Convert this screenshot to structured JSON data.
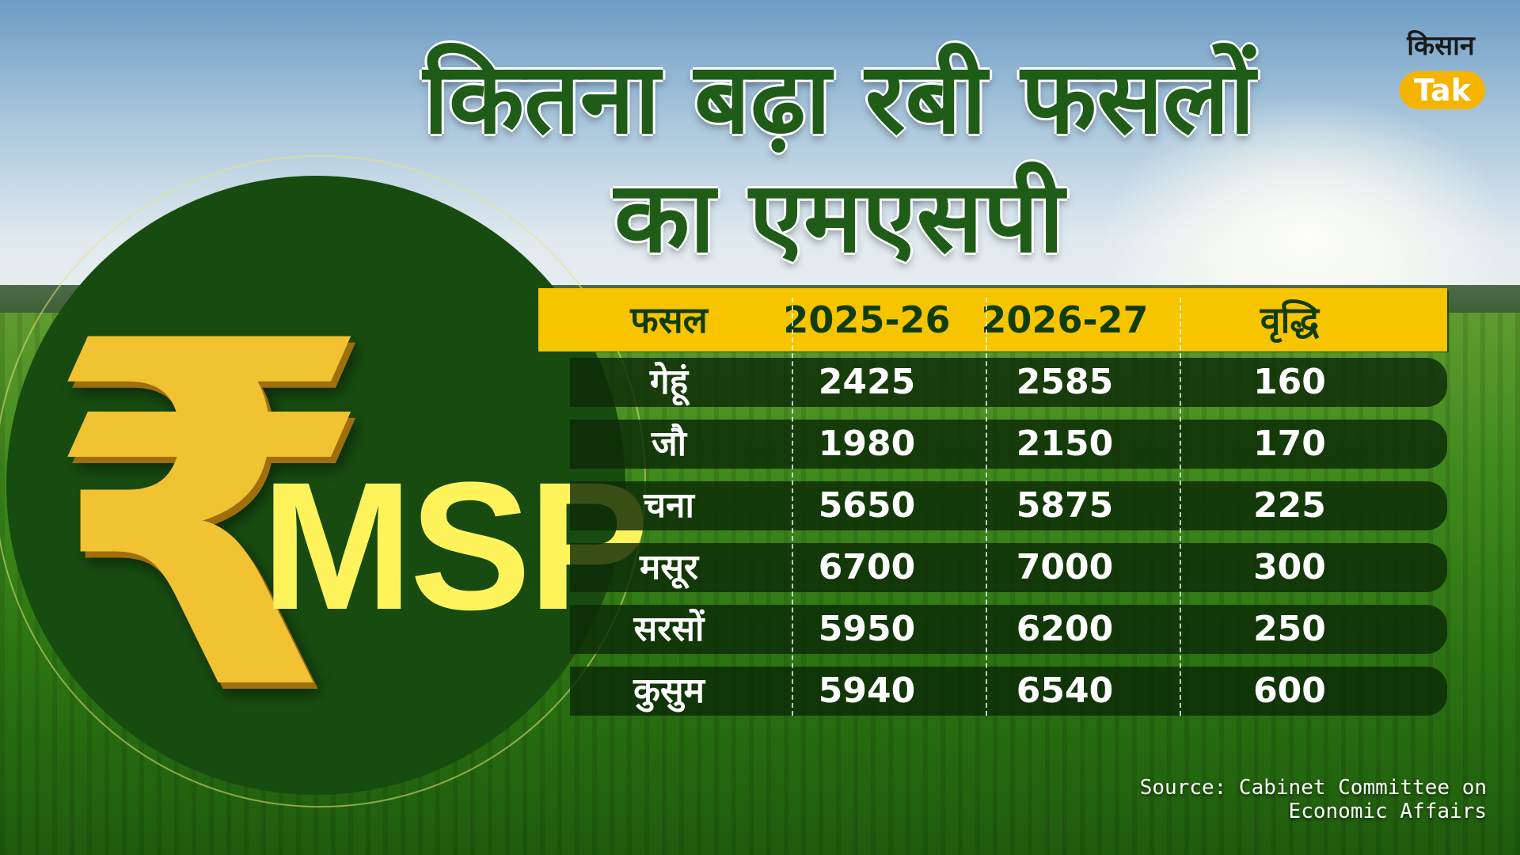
{
  "title": {
    "line1": "कितना बढ़ा रबी फसलों",
    "line2": "का एमएसपी"
  },
  "logo": {
    "top_text": "किसान",
    "bottom_text": "Tak",
    "accent": "#f4b400"
  },
  "badge": {
    "symbol": "₹",
    "label": "MSP"
  },
  "table": {
    "headers": [
      "फसल",
      "2025-26",
      "2026-27",
      "वृद्धि"
    ],
    "rows": [
      [
        "गेहूं",
        "2425",
        "2585",
        "160"
      ],
      [
        "जौ",
        "1980",
        "2150",
        "170"
      ],
      [
        "चना",
        "5650",
        "5875",
        "225"
      ],
      [
        "मसूर",
        "6700",
        "7000",
        "300"
      ],
      [
        "सरसों",
        "5950",
        "6200",
        "250"
      ],
      [
        "कुसुम",
        "5940",
        "6540",
        "600"
      ]
    ],
    "header_color": "#f7c500",
    "title_color": "#1f5c18"
  },
  "source": "Source: Cabinet Committee on Economic Affairs"
}
